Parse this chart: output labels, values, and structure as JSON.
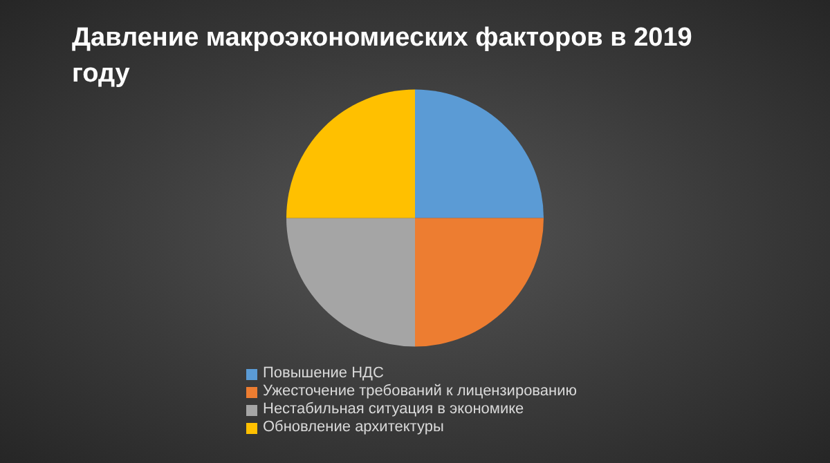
{
  "chart_data": {
    "type": "pie",
    "title": "Давление макроэкономиеских факторов в 2019 году",
    "categories": [
      "Повышение НДС",
      "Ужесточение требований к лицензированию",
      "Нестабильная ситуация в экономике",
      "Обновление архитектуры"
    ],
    "values": [
      25,
      25,
      25,
      25
    ],
    "colors": [
      "#5b9bd5",
      "#ed7d31",
      "#a5a5a5",
      "#ffc000"
    ],
    "legend": "bottom"
  }
}
